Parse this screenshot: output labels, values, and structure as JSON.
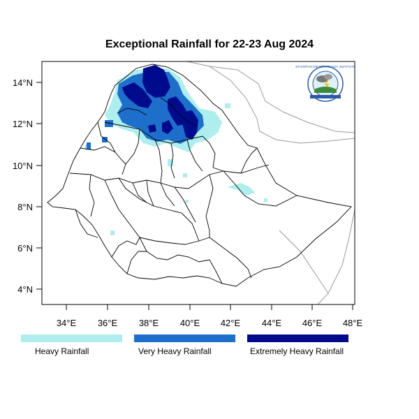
{
  "title": "Exceptional Rainfall for 22-23 Aug 2024",
  "axes": {
    "x_ticks": [
      "34°E",
      "36°E",
      "38°E",
      "40°E",
      "42°E",
      "44°E",
      "46°E",
      "48°E"
    ],
    "y_ticks": [
      "4°N",
      "6°N",
      "8°N",
      "10°N",
      "12°N",
      "14°N"
    ]
  },
  "legend": [
    {
      "label": "Heavy Rainfall",
      "color": "#aeeeee"
    },
    {
      "label": "Very Heavy Rainfall",
      "color": "#1e6fcc"
    },
    {
      "label": "Extremely Heavy Rainfall",
      "color": "#000a8c"
    }
  ],
  "logo": {
    "text": "ETHIOPIAN METEOROLOGY INSTITUTE",
    "icon": "met-institute-logo-icon"
  },
  "colors": {
    "boundary": "#000000",
    "neighbor_boundary": "#9a9a9a",
    "frame": "#000000"
  }
}
